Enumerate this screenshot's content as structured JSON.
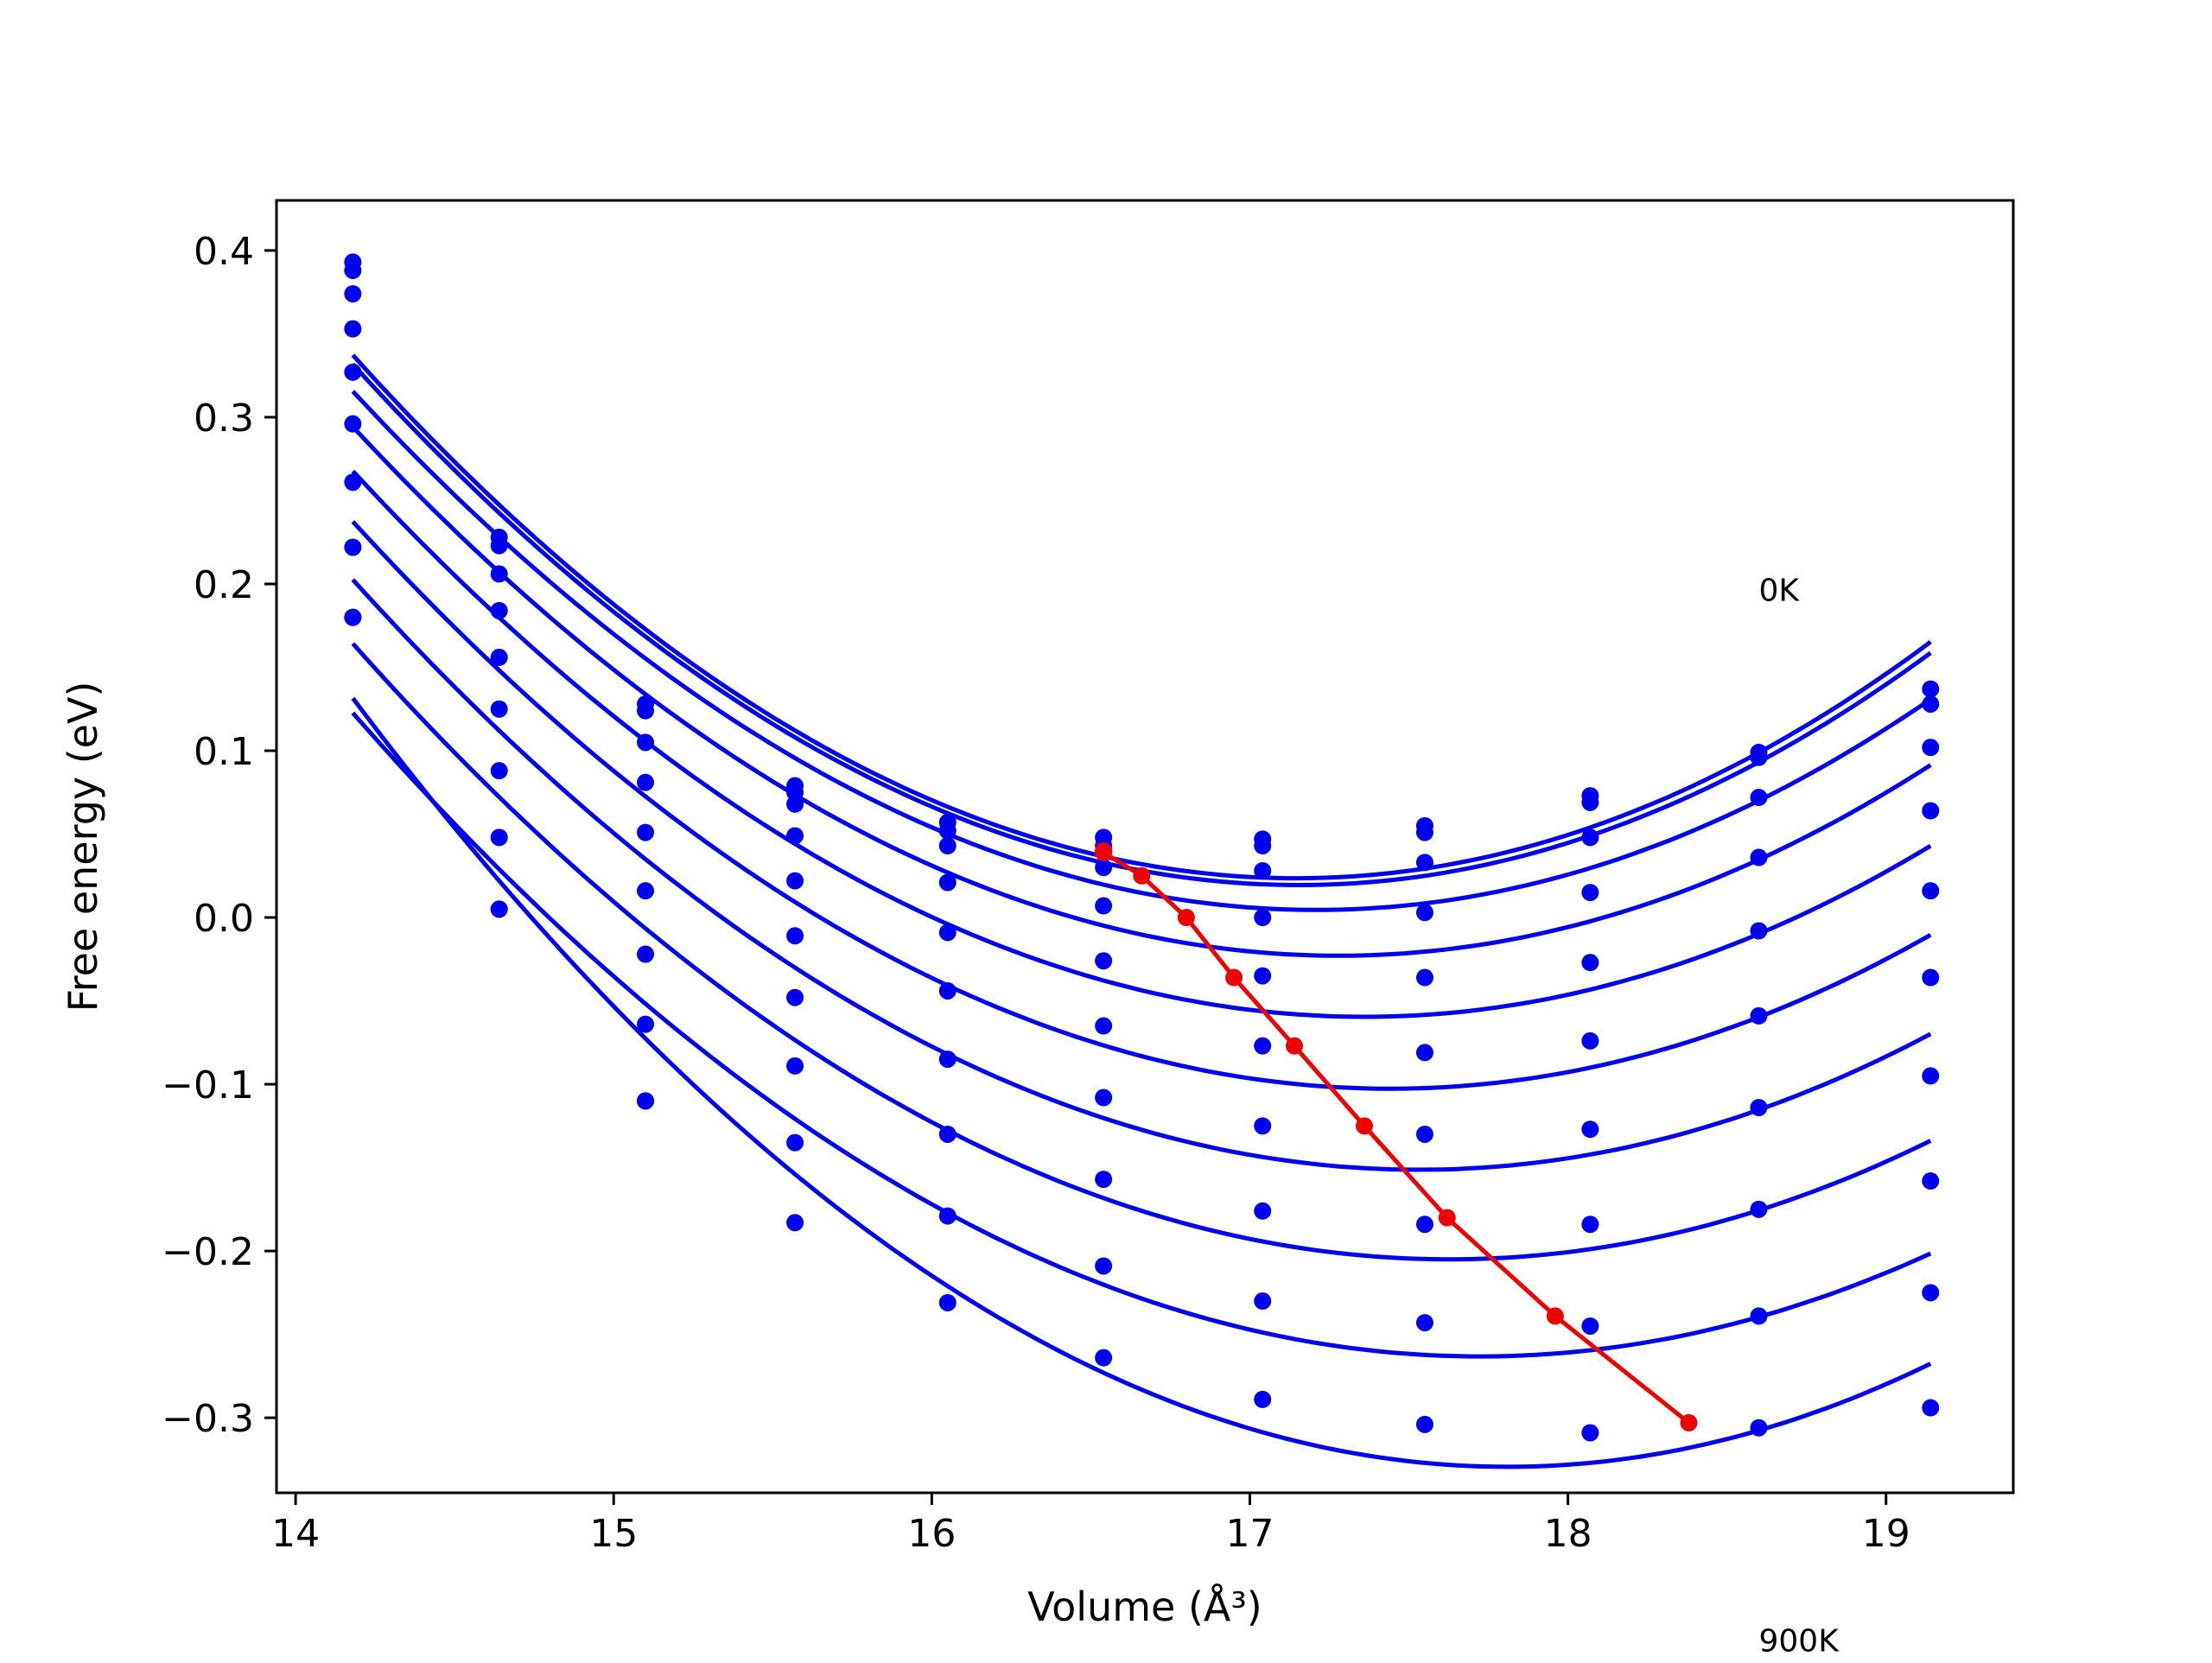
{
  "chart_data": {
    "type": "scatter",
    "xlabel": "Volume (Å³)",
    "ylabel": "Free energy (eV)",
    "xlim": [
      13.94,
      19.4
    ],
    "ylim": [
      -0.345,
      0.43
    ],
    "x_ticks": [
      14,
      15,
      16,
      17,
      18,
      19
    ],
    "y_ticks": [
      0.4,
      0.3,
      0.2,
      0.1,
      0.0,
      -0.1,
      -0.2,
      -0.3
    ],
    "x_tick_labels": [
      "14",
      "15",
      "16",
      "17",
      "18",
      "19"
    ],
    "y_tick_labels": [
      "0.4",
      "0.3",
      "0.2",
      "0.1",
      "0.0",
      "−0.1",
      "−0.2",
      "−0.3"
    ],
    "grid": false,
    "annotations": [
      {
        "text": "0K",
        "x": 18.6,
        "y": 0.19
      },
      {
        "text": "900K",
        "x": 18.6,
        "y": -0.44
      }
    ],
    "x": [
      14.18,
      14.64,
      15.1,
      15.57,
      16.05,
      16.54,
      17.04,
      17.55,
      18.07,
      18.6,
      19.14
    ],
    "series_color": "#0000ee",
    "equilibrium_color": "#ee0000",
    "series": [
      {
        "values": [
          0.393,
          0.228,
          0.128,
          0.079,
          0.057,
          0.048,
          0.047,
          0.055,
          0.073,
          0.099,
          0.137
        ]
      },
      {
        "values": [
          0.388,
          0.223,
          0.124,
          0.075,
          0.052,
          0.043,
          0.043,
          0.051,
          0.069,
          0.096,
          0.128
        ]
      },
      {
        "values": [
          0.374,
          0.206,
          0.105,
          0.068,
          0.043,
          0.03,
          0.028,
          0.033,
          0.048,
          0.072,
          0.102
        ]
      },
      {
        "values": [
          0.353,
          0.184,
          0.081,
          0.049,
          0.021,
          0.007,
          0.0,
          0.003,
          0.015,
          0.036,
          0.064
        ]
      },
      {
        "values": [
          0.327,
          0.156,
          0.051,
          0.022,
          -0.009,
          -0.026,
          -0.035,
          -0.036,
          -0.027,
          -0.008,
          0.016
        ]
      },
      {
        "values": [
          0.296,
          0.125,
          0.016,
          -0.011,
          -0.044,
          -0.065,
          -0.077,
          -0.081,
          -0.074,
          -0.059,
          -0.036
        ]
      },
      {
        "values": [
          0.261,
          0.088,
          -0.022,
          -0.048,
          -0.085,
          -0.108,
          -0.125,
          -0.13,
          -0.127,
          -0.114,
          -0.095
        ]
      },
      {
        "values": [
          0.222,
          0.048,
          -0.064,
          -0.089,
          -0.13,
          -0.157,
          -0.176,
          -0.184,
          -0.184,
          -0.175,
          -0.158
        ]
      },
      {
        "values": [
          0.18,
          0.005,
          -0.11,
          -0.135,
          -0.179,
          -0.209,
          -0.23,
          -0.243,
          -0.245,
          -0.239,
          -0.225
        ]
      },
      {
        "values": [
          0.18,
          0.005,
          -0.11,
          -0.183,
          -0.231,
          -0.264,
          -0.289,
          -0.304,
          -0.309,
          -0.306,
          -0.294
        ]
      }
    ],
    "fit_minima": {
      "x": [
        16.54,
        16.54,
        16.66,
        16.8,
        16.95,
        17.14,
        17.36,
        17.62,
        17.96,
        18.38
      ],
      "y": [
        0.04,
        0.039,
        0.025,
        0.0,
        -0.036,
        -0.077,
        -0.125,
        -0.18,
        -0.239,
        -0.303
      ]
    }
  }
}
